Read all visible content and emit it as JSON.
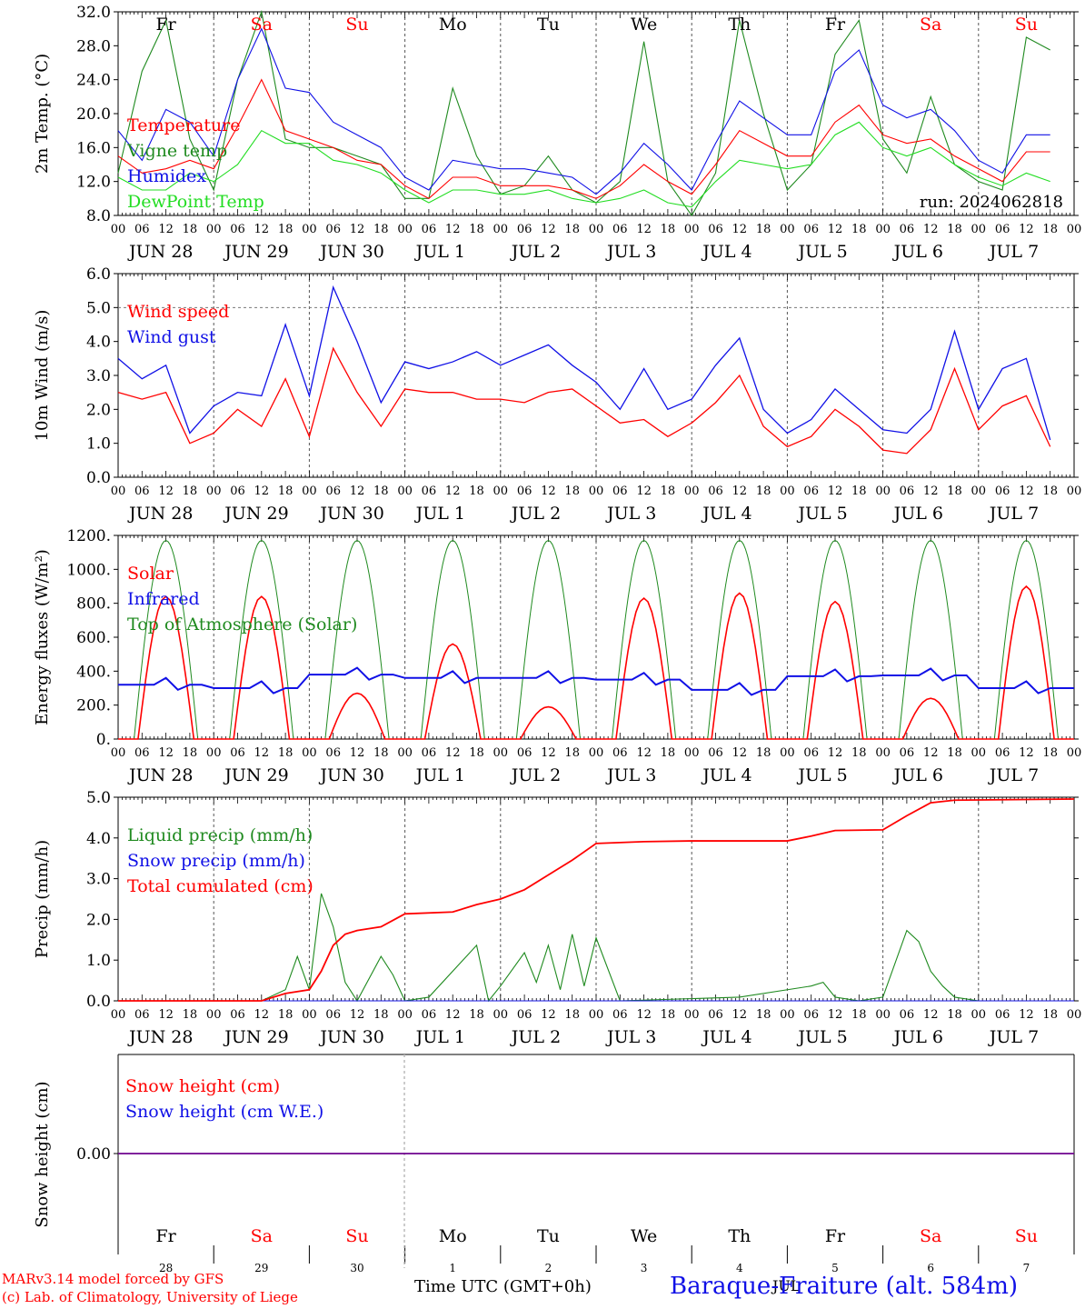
{
  "palette": {
    "red": "#ff0000",
    "green": "#1f8a1f",
    "blue": "#1010e6",
    "lightgreen": "#22dd22",
    "purple": "#7f007f"
  },
  "days": {
    "abbr": [
      "Fr",
      "Sa",
      "Su",
      "Mo",
      "Tu",
      "We",
      "Th",
      "Fr",
      "Sa",
      "Su"
    ],
    "weekend": [
      false,
      true,
      true,
      false,
      false,
      false,
      false,
      false,
      true,
      true
    ],
    "dates": [
      "JUN 28",
      "JUN 29",
      "JUN 30",
      "JUL  1",
      "JUL  2",
      "JUL  3",
      "JUL  4",
      "JUL  5",
      "JUL  6",
      "JUL  7"
    ],
    "short": [
      "28",
      "29",
      "30",
      "1",
      "2",
      "3",
      "4",
      "5",
      "6",
      "7"
    ],
    "hour_ticks": [
      "00",
      "06",
      "12",
      "18"
    ],
    "end_tick": "00"
  },
  "run_label": "run: 2024062818",
  "footer": {
    "model": "MARv3.14 model forced by GFS",
    "lab": "(c) Lab. of Climatology, University of Liege",
    "axis": "Time UTC (GMT+0h)",
    "month": "JUL",
    "station": "Baraque-Fraiture (alt. 584m)"
  },
  "chart_data": [
    {
      "type": "line",
      "ylabel": "2m Temp. (°C)",
      "ylim": [
        8,
        32
      ],
      "yticks": [
        "8.0",
        "12.0",
        "16.0",
        "20.0",
        "24.0",
        "28.0",
        "32.0"
      ],
      "x_hours_from_jun28_00": [
        0,
        6,
        12,
        18,
        24,
        30,
        36,
        42,
        48,
        54,
        60,
        66,
        72,
        78,
        84,
        90,
        96,
        102,
        108,
        114,
        120,
        126,
        132,
        138,
        144,
        150,
        156,
        162,
        168,
        174,
        180,
        186,
        192,
        198,
        204,
        210,
        216,
        222,
        228,
        234
      ],
      "series": [
        {
          "name": "Temperature",
          "color": "red",
          "values": [
            15,
            13,
            13.5,
            14.5,
            13.5,
            18.5,
            24,
            18,
            17,
            16,
            14.5,
            14,
            11.5,
            10,
            12.5,
            12.5,
            11.5,
            11.5,
            11.5,
            11,
            10,
            11.5,
            14,
            12,
            10.5,
            14,
            18,
            16.5,
            15,
            15,
            19,
            21,
            17.5,
            16.5,
            17,
            15,
            13.5,
            12,
            15.5,
            15.5
          ]
        },
        {
          "name": "Vigne temp",
          "color": "green",
          "values": [
            13,
            25,
            31,
            17,
            11,
            24,
            33,
            17,
            16,
            16,
            15,
            14,
            10,
            10,
            23,
            15,
            10.5,
            11.5,
            15,
            11,
            9.5,
            12,
            28.5,
            12,
            8,
            13,
            31,
            20,
            11,
            14,
            27,
            31,
            17,
            13,
            22,
            14,
            12,
            11,
            29,
            27.5
          ]
        },
        {
          "name": "Humidex",
          "color": "blue",
          "values": [
            18,
            14.5,
            20.5,
            19,
            15,
            24,
            30,
            23,
            22.5,
            19,
            17.5,
            16,
            12.5,
            11,
            14.5,
            14,
            13.5,
            13.5,
            13,
            12.5,
            10.5,
            13,
            16.5,
            14,
            11,
            16.5,
            21.5,
            19.5,
            17.5,
            17.5,
            25,
            27.5,
            21,
            19.5,
            20.5,
            18,
            14.5,
            13,
            17.5,
            17.5
          ]
        },
        {
          "name": "DewPoint Temp",
          "color": "lightgreen",
          "values": [
            12.5,
            11,
            11,
            13,
            12,
            14,
            18,
            16.5,
            16.5,
            14.5,
            14,
            13,
            11,
            9.5,
            11,
            11,
            10.5,
            10.5,
            11,
            10,
            9.5,
            10,
            11,
            9.5,
            9,
            12,
            14.5,
            14,
            13.5,
            14,
            17.5,
            19,
            16,
            15,
            16,
            14,
            12.5,
            11.5,
            13,
            12
          ]
        }
      ]
    },
    {
      "type": "line",
      "ylabel": "10m Wind (m/s)",
      "ylim": [
        0,
        6
      ],
      "yticks": [
        "0.0",
        "1.0",
        "2.0",
        "3.0",
        "4.0",
        "5.0",
        "6.0"
      ],
      "x_hours_from_jun28_00": [
        0,
        6,
        12,
        18,
        24,
        30,
        36,
        42,
        48,
        54,
        60,
        66,
        72,
        78,
        84,
        90,
        96,
        102,
        108,
        114,
        120,
        126,
        132,
        138,
        144,
        150,
        156,
        162,
        168,
        174,
        180,
        186,
        192,
        198,
        204,
        210,
        216,
        222,
        228,
        234
      ],
      "series": [
        {
          "name": "Wind speed",
          "color": "red",
          "values": [
            2.5,
            2.3,
            2.5,
            1.0,
            1.3,
            2.0,
            1.5,
            2.9,
            1.2,
            3.8,
            2.5,
            1.5,
            2.6,
            2.5,
            2.5,
            2.3,
            2.3,
            2.2,
            2.5,
            2.6,
            2.1,
            1.6,
            1.7,
            1.2,
            1.6,
            2.2,
            3.0,
            1.5,
            0.9,
            1.2,
            2.0,
            1.5,
            0.8,
            0.7,
            1.4,
            3.2,
            1.4,
            2.1,
            2.4,
            0.9
          ]
        },
        {
          "name": "Wind gust",
          "color": "blue",
          "values": [
            3.5,
            2.9,
            3.3,
            1.3,
            2.1,
            2.5,
            2.4,
            4.5,
            2.4,
            5.6,
            4.0,
            2.2,
            3.4,
            3.2,
            3.4,
            3.7,
            3.3,
            3.6,
            3.9,
            3.3,
            2.8,
            2.0,
            3.2,
            2.0,
            2.3,
            3.3,
            4.1,
            2.0,
            1.3,
            1.7,
            2.6,
            2.0,
            1.4,
            1.3,
            2.0,
            4.3,
            2.0,
            3.2,
            3.5,
            1.1
          ]
        }
      ]
    },
    {
      "type": "line",
      "ylabel": "Energy fluxes (W/m²)",
      "ylim": [
        0,
        1200
      ],
      "yticks": [
        "0.",
        "200.",
        "400.",
        "600.",
        "800.",
        "1000.",
        "1200."
      ],
      "daily_peaks": {
        "solar": [
          840,
          840,
          270,
          560,
          190,
          830,
          860,
          810,
          240,
          900
        ],
        "top_of_atmosphere": [
          1170,
          1170,
          1170,
          1170,
          1170,
          1170,
          1170,
          1170,
          1170,
          1170
        ],
        "infrared": [
          320,
          300,
          380,
          360,
          360,
          350,
          290,
          370,
          375,
          300
        ]
      },
      "series": [
        {
          "name": "Solar",
          "color": "red"
        },
        {
          "name": "Infrared",
          "color": "blue"
        },
        {
          "name": "Top of Atmosphere (Solar)",
          "color": "green"
        }
      ]
    },
    {
      "type": "line",
      "ylabel": "Precip (mm/h)",
      "ylim": [
        0,
        5.5
      ],
      "yticks": [
        "0.0",
        "1.0",
        "2.0",
        "3.0",
        "4.0",
        "5.0"
      ],
      "series": [
        {
          "name": "Liquid precip (mm/h)",
          "color": "green",
          "x_hours_from_jun28_00": [
            0,
            36,
            42,
            45,
            48,
            51,
            54,
            57,
            60,
            66,
            69,
            72,
            78,
            90,
            93,
            96,
            102,
            105,
            108,
            111,
            114,
            117,
            120,
            126,
            156,
            174,
            177,
            180,
            186,
            192,
            198,
            201,
            204,
            207,
            210,
            216,
            240
          ],
          "values": [
            0,
            0,
            0.3,
            1.2,
            0.3,
            2.9,
            2.0,
            0.5,
            0,
            1.2,
            0.7,
            0,
            0.1,
            1.5,
            0,
            0.4,
            1.3,
            0.5,
            1.5,
            0.3,
            1.8,
            0.4,
            1.7,
            0,
            0.1,
            0.4,
            0.5,
            0.1,
            0,
            0.1,
            1.9,
            1.6,
            0.8,
            0.4,
            0.1,
            0,
            0
          ]
        },
        {
          "name": "Snow precip (mm/h)",
          "color": "blue",
          "x_hours_from_jun28_00": [
            0,
            240
          ],
          "values": [
            0,
            0
          ]
        },
        {
          "name": "Total cumulated (cm)",
          "color": "red",
          "x_hours_from_jun28_00": [
            0,
            36,
            42,
            48,
            51,
            54,
            57,
            60,
            66,
            72,
            84,
            90,
            96,
            102,
            108,
            114,
            120,
            132,
            144,
            168,
            174,
            180,
            192,
            198,
            204,
            210,
            240
          ],
          "values": [
            0,
            0,
            0.2,
            0.3,
            0.8,
            1.5,
            1.8,
            1.9,
            2.0,
            2.35,
            2.4,
            2.6,
            2.75,
            3.0,
            3.4,
            3.8,
            4.25,
            4.3,
            4.32,
            4.32,
            4.45,
            4.6,
            4.62,
            5.0,
            5.35,
            5.42,
            5.45
          ]
        }
      ]
    },
    {
      "type": "line",
      "ylabel": "Snow height (cm)",
      "yticks": [
        "0.00"
      ],
      "series": [
        {
          "name": "Snow height (cm)",
          "color": "red",
          "values": [
            0,
            0
          ]
        },
        {
          "name": "Snow height (cm W.E.)",
          "color": "blue",
          "values": [
            0,
            0
          ]
        }
      ]
    }
  ]
}
